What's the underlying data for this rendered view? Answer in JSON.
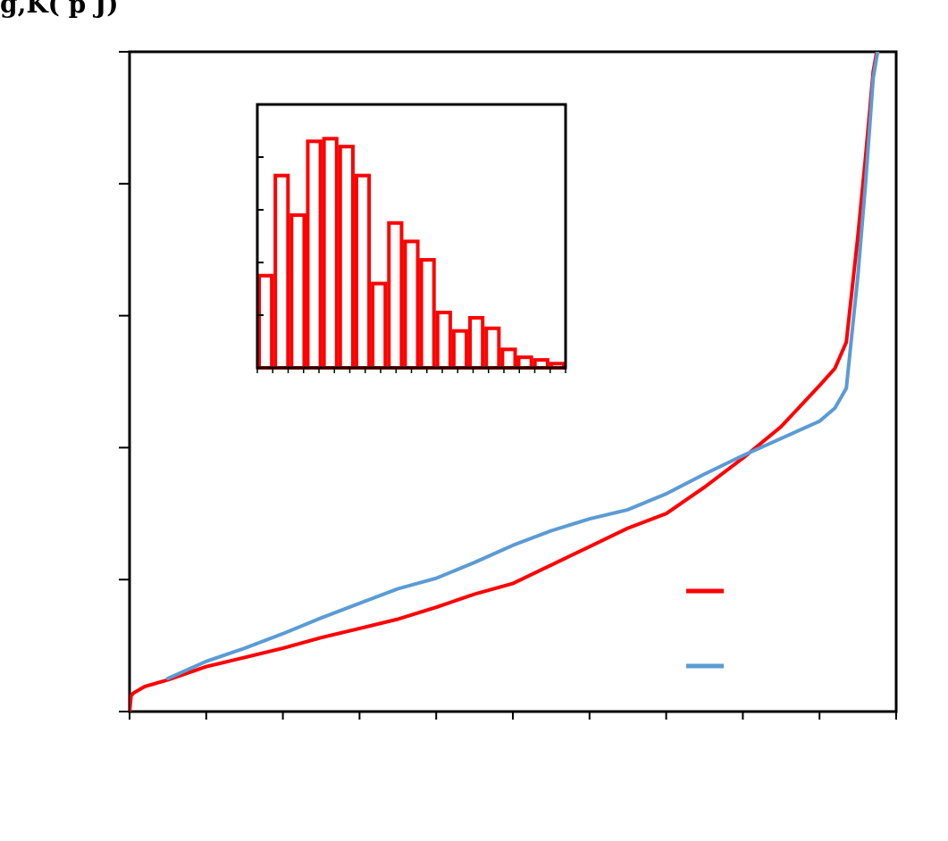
{
  "chart_data": [
    {
      "type": "line",
      "title": "",
      "xlabel": "",
      "ylabel": "g,K( p J)",
      "xlim": [
        0,
        10
      ],
      "ylim": [
        0,
        5
      ],
      "x_ticks": [
        0,
        1,
        2,
        3,
        4,
        5,
        6,
        7,
        8,
        9,
        10
      ],
      "y_ticks": [
        0,
        1,
        2,
        3,
        4,
        5
      ],
      "grid": false,
      "legend_position": "bottom-right",
      "series": [
        {
          "color": "#ff0000",
          "points": [
            [
              0.0,
              0.0
            ],
            [
              0.02,
              0.12
            ],
            [
              0.05,
              0.14
            ],
            [
              0.2,
              0.19
            ],
            [
              0.5,
              0.24
            ],
            [
              1.0,
              0.34
            ],
            [
              1.5,
              0.41
            ],
            [
              2.0,
              0.48
            ],
            [
              2.5,
              0.56
            ],
            [
              3.0,
              0.63
            ],
            [
              3.5,
              0.7
            ],
            [
              4.0,
              0.79
            ],
            [
              4.5,
              0.89
            ],
            [
              5.0,
              0.97
            ],
            [
              5.5,
              1.11
            ],
            [
              6.0,
              1.25
            ],
            [
              6.5,
              1.39
            ],
            [
              7.0,
              1.5
            ],
            [
              7.5,
              1.7
            ],
            [
              8.0,
              1.92
            ],
            [
              8.5,
              2.16
            ],
            [
              9.0,
              2.47
            ],
            [
              9.2,
              2.6
            ],
            [
              9.35,
              2.8
            ],
            [
              9.5,
              3.6
            ],
            [
              9.6,
              4.2
            ],
            [
              9.7,
              4.85
            ],
            [
              9.9,
              5.5
            ]
          ]
        },
        {
          "color": "#5b9bd5",
          "points": [
            [
              0.5,
              0.25
            ],
            [
              1.0,
              0.38
            ],
            [
              1.5,
              0.48
            ],
            [
              2.0,
              0.59
            ],
            [
              2.5,
              0.71
            ],
            [
              3.0,
              0.82
            ],
            [
              3.5,
              0.93
            ],
            [
              4.0,
              1.01
            ],
            [
              4.5,
              1.13
            ],
            [
              5.0,
              1.26
            ],
            [
              5.5,
              1.37
            ],
            [
              6.0,
              1.46
            ],
            [
              6.5,
              1.53
            ],
            [
              7.0,
              1.65
            ],
            [
              7.5,
              1.8
            ],
            [
              8.0,
              1.94
            ],
            [
              8.5,
              2.07
            ],
            [
              9.0,
              2.2
            ],
            [
              9.2,
              2.3
            ],
            [
              9.35,
              2.45
            ],
            [
              9.5,
              3.3
            ],
            [
              9.6,
              4.0
            ],
            [
              9.7,
              4.8
            ],
            [
              9.9,
              5.5
            ]
          ]
        }
      ]
    },
    {
      "type": "bar",
      "title": "",
      "xlabel": "",
      "ylabel": "",
      "ylim": [
        0,
        5
      ],
      "y_ticks": [
        0,
        1,
        2,
        3,
        4,
        5
      ],
      "x_ticks": 20,
      "values": [
        1.75,
        3.65,
        2.9,
        4.3,
        4.35,
        4.2,
        3.65,
        1.6,
        2.75,
        2.4,
        2.05,
        1.05,
        0.7,
        0.95,
        0.75,
        0.35,
        0.2,
        0.15,
        0.08
      ],
      "color": "#ff0000"
    }
  ]
}
